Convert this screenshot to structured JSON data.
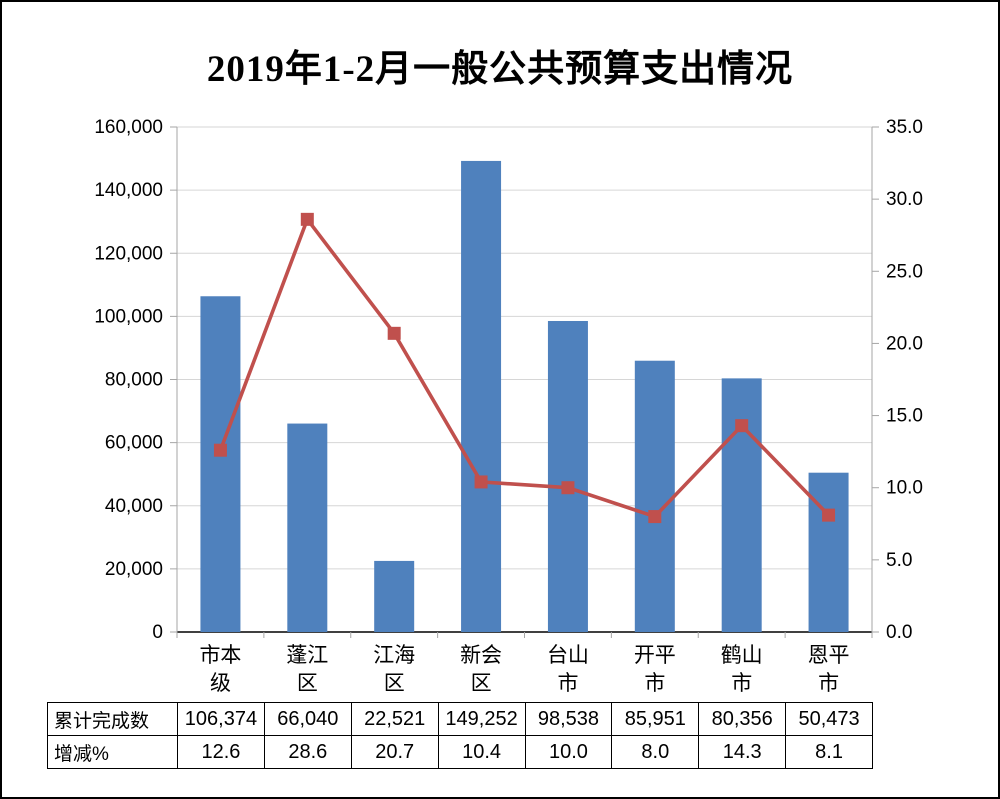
{
  "chart_data": {
    "type": "bar",
    "subtype": "combo-bar-line",
    "title": "2019年1-2月一般公共预算支出情况",
    "categories": [
      "市本级",
      "蓬江区",
      "江海区",
      "新会区",
      "台山市",
      "开平市",
      "鹤山市",
      "恩平市"
    ],
    "series": [
      {
        "name": "累计完成数",
        "type": "bar",
        "axis": "left",
        "values": [
          106374,
          66040,
          22521,
          149252,
          98538,
          85951,
          80356,
          50473
        ]
      },
      {
        "name": "增减%",
        "type": "line",
        "axis": "right",
        "values": [
          12.6,
          28.6,
          20.7,
          10.4,
          10.0,
          8.0,
          14.3,
          8.1
        ]
      }
    ],
    "left_axis": {
      "min": 0,
      "max": 160000,
      "step": 20000
    },
    "right_axis": {
      "min": 0,
      "max": 35,
      "step": 5
    },
    "grid": true,
    "legend": "none"
  },
  "table": {
    "row_labels": [
      "累计完成数",
      "增减%"
    ],
    "rows": [
      [
        "106,374",
        "66,040",
        "22,521",
        "149,252",
        "98,538",
        "85,951",
        "80,356",
        "50,473"
      ],
      [
        "12.6",
        "28.6",
        "20.7",
        "10.4",
        "10.0",
        "8.0",
        "14.3",
        "8.1"
      ]
    ]
  },
  "colors": {
    "bar": "#4F81BD",
    "line": "#C0504D",
    "grid": "#D6D6D6",
    "axis_line": "#000000",
    "axis_minor": "#A6A6A6",
    "text": "#000000",
    "frame": "#000000"
  }
}
